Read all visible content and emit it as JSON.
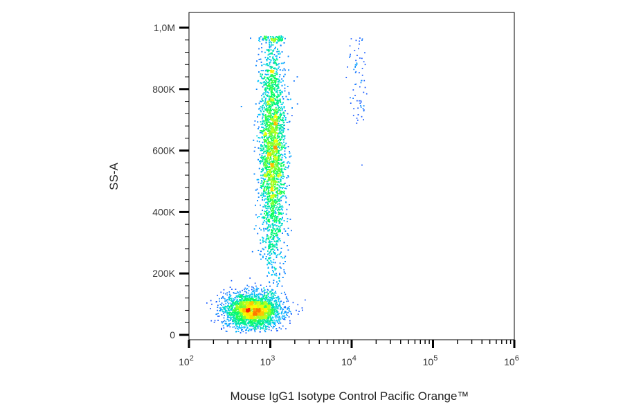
{
  "chart_data": {
    "type": "scatter",
    "title": "",
    "xlabel": "Mouse IgG1 Isotype Control Pacific Orange™",
    "ylabel": "SS-A",
    "x_scale": "log",
    "xlim": [
      100,
      1000000
    ],
    "ylim": [
      0,
      1000000
    ],
    "x_ticks": [
      {
        "value": 100,
        "base": "10",
        "exp": "2"
      },
      {
        "value": 1000,
        "base": "10",
        "exp": "3"
      },
      {
        "value": 10000,
        "base": "10",
        "exp": "4"
      },
      {
        "value": 100000,
        "base": "10",
        "exp": "5"
      },
      {
        "value": 1000000,
        "base": "10",
        "exp": "6"
      }
    ],
    "y_ticks": [
      {
        "value": 0,
        "label": "0"
      },
      {
        "value": 200000,
        "label": "200K"
      },
      {
        "value": 400000,
        "label": "400K"
      },
      {
        "value": 600000,
        "label": "600K"
      },
      {
        "value": 800000,
        "label": "800K"
      },
      {
        "value": 1000000,
        "label": "1,0M"
      }
    ],
    "grid": false,
    "legend": "none",
    "colormap": [
      "#1a1aff",
      "#00c8ff",
      "#00ff60",
      "#ffff00",
      "#ff2000"
    ],
    "populations": [
      {
        "x_center": 600,
        "y_center": 80000,
        "x_spread": 0.17,
        "y_spread": 28000,
        "count": 3000,
        "density": "high"
      },
      {
        "x_center": 1050,
        "y_center": 600000,
        "x_spread": 0.08,
        "y_spread": 190000,
        "count": 6500,
        "density": "medium"
      },
      {
        "x_center": 12000,
        "y_center": 820000,
        "x_spread": 0.06,
        "y_spread": 100000,
        "count": 70,
        "density": "low"
      }
    ]
  }
}
